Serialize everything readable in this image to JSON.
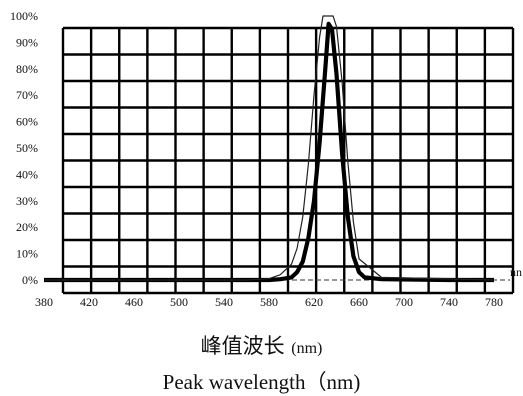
{
  "chart_data": {
    "type": "line",
    "title": "",
    "xlabel_zh": "峰值波长",
    "xlabel_zh_unit": "(nm)",
    "xlabel_en": "Peak wavelength（nm)",
    "ylabel": "",
    "ylim": [
      0,
      100
    ],
    "xlim": [
      380,
      780
    ],
    "grid": true,
    "y_ticks": [
      "0%",
      "10%",
      "20%",
      "30%",
      "40%",
      "50%",
      "60%",
      "70%",
      "80%",
      "90%",
      "100%"
    ],
    "x_ticks": [
      "380",
      "420",
      "460",
      "500",
      "540",
      "580",
      "620",
      "660",
      "700",
      "740",
      "780"
    ],
    "axis_end_label": "nn",
    "series": [
      {
        "values_x": [
          380,
          560,
          580,
          590,
          600,
          605,
          610,
          615,
          620,
          625,
          630,
          633,
          636,
          640,
          645,
          650,
          655,
          660,
          665,
          680,
          740,
          780
        ],
        "values_y": [
          0,
          0,
          0,
          0.3,
          1,
          3,
          7,
          16,
          30,
          52,
          80,
          97,
          95,
          78,
          48,
          24,
          9,
          3,
          1,
          0.3,
          0,
          0
        ]
      },
      {
        "values_x": [
          380,
          560,
          580,
          590,
          600,
          605,
          610,
          615,
          620,
          625,
          628,
          631,
          634,
          637,
          640,
          645,
          650,
          655,
          660,
          680,
          780
        ],
        "values_y": [
          0,
          0,
          0.5,
          2,
          6,
          12,
          24,
          44,
          70,
          92,
          100,
          100,
          100,
          100,
          96,
          75,
          45,
          22,
          8,
          1,
          0
        ]
      }
    ]
  }
}
